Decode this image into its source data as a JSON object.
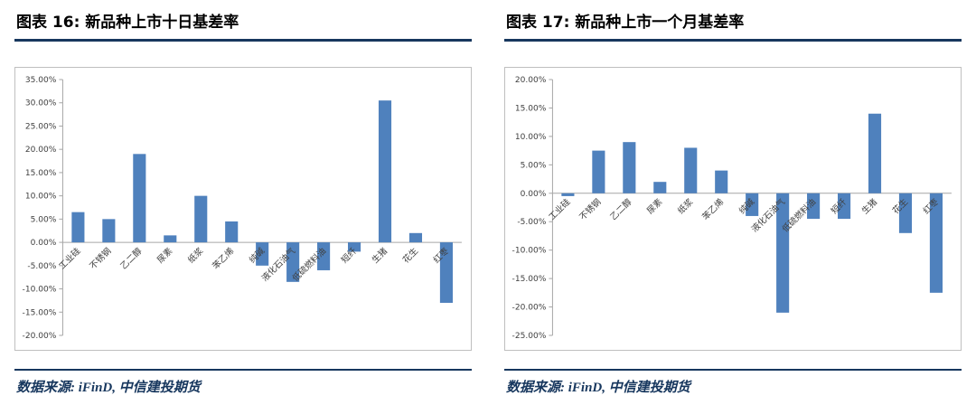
{
  "colors": {
    "bar": "#4F81BD",
    "accent_rule": "#17375E",
    "source_text": "#17375E",
    "axis": "#A6A6A6",
    "tick_text": "#404040",
    "chart_border": "#BFBFBF"
  },
  "document": {
    "sources": [
      "数据来源: iFinD, 中信建投期货",
      "数据来源: iFinD, 中信建投期货"
    ]
  },
  "chart_data": [
    {
      "type": "bar",
      "title": "图表 16: 新品种上市十日基差率",
      "categories": [
        "工业硅",
        "不锈钢",
        "乙二醇",
        "尿素",
        "纸浆",
        "苯乙烯",
        "纯碱",
        "液化石油气",
        "低硫燃料油",
        "短纤",
        "生猪",
        "花生",
        "红枣"
      ],
      "values": [
        6.5,
        5.0,
        19.0,
        1.5,
        10.0,
        4.5,
        -5.0,
        -8.5,
        -6.0,
        -2.0,
        30.5,
        2.0,
        -13.0
      ],
      "xlabel": "",
      "ylabel": "",
      "ylim": [
        -20,
        35
      ],
      "ytick_step": 5,
      "ytick_format": "0.00%",
      "grid": false,
      "legend": "none"
    },
    {
      "type": "bar",
      "title": "图表 17: 新品种上市一个月基差率",
      "categories": [
        "工业硅",
        "不锈钢",
        "乙二醇",
        "尿素",
        "纸浆",
        "苯乙烯",
        "纯碱",
        "液化石油气",
        "低硫燃料油",
        "短纤",
        "生猪",
        "花生",
        "红枣"
      ],
      "values": [
        -0.5,
        7.5,
        9.0,
        2.0,
        8.0,
        4.0,
        -4.0,
        -21.0,
        -4.5,
        -4.5,
        14.0,
        -7.0,
        -17.5
      ],
      "xlabel": "",
      "ylabel": "",
      "ylim": [
        -25,
        20
      ],
      "ytick_step": 5,
      "ytick_format": "0.00%",
      "grid": false,
      "legend": "none"
    }
  ]
}
